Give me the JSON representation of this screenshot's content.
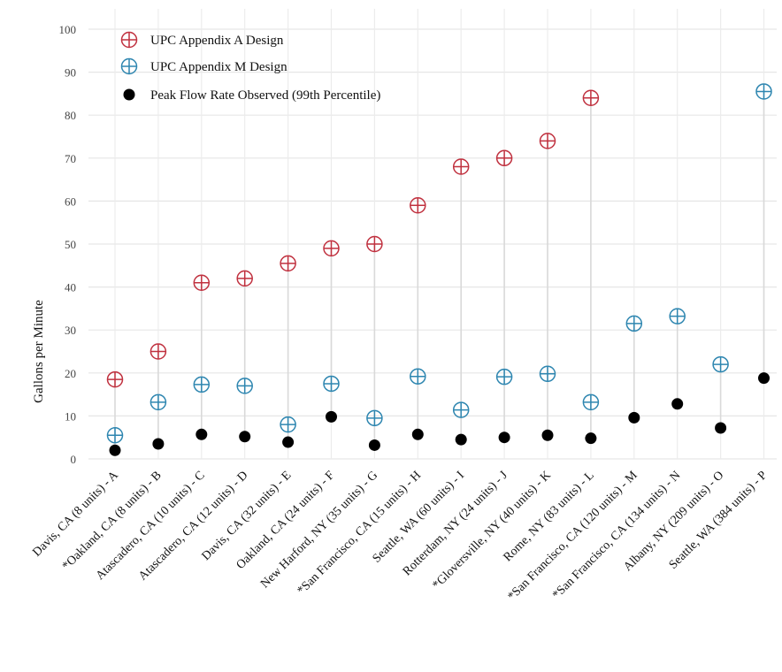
{
  "chart_data": {
    "type": "scatter",
    "title": "",
    "xlabel": "",
    "ylabel": "Gallons per Minute",
    "ylim": [
      0,
      100
    ],
    "yticks": [
      0,
      10,
      20,
      30,
      40,
      50,
      60,
      70,
      80,
      90,
      100
    ],
    "grid": true,
    "legend_position": "top-left",
    "categories": [
      "Davis, CA (8 units) - A",
      "*Oakland, CA (8 units) - B",
      "Atascadero, CA (10 units) - C",
      "Atascadero, CA (12 units) - D",
      "Davis, CA (32 units) - E",
      "Oakland, CA (24 units) - F",
      "New Harford, NY  (35 units) - G",
      "*San Francisco, CA (15 units) - H",
      "Seattle, WA (60 units) - I",
      "Rotterdam, NY (24 units) - J",
      "*Gloversville, NY (40 units) - K",
      "Rome, NY (83 units) - L",
      "*San Francisco, CA (120 units) - M",
      "*San Francisco, CA (134 units) - N",
      "Albany, NY (209 units) - O",
      "Seattle, WA (384 units) - P"
    ],
    "series": [
      {
        "name": "UPC Appendix A Design",
        "marker": "circle-plus",
        "color": "#c0313f",
        "values": [
          18.5,
          25,
          41,
          42,
          45.5,
          49,
          50,
          59,
          68,
          70,
          74,
          84,
          null,
          null,
          null,
          null
        ]
      },
      {
        "name": "UPC Appendix M Design",
        "marker": "circle-plus",
        "color": "#2e86b0",
        "values": [
          5.5,
          13.2,
          17.3,
          17,
          8,
          17.5,
          9.5,
          19.2,
          11.4,
          19.1,
          19.8,
          13.2,
          31.5,
          33.2,
          22,
          85.5
        ]
      },
      {
        "name": "Peak Flow Rate Observed (99th Percentile)",
        "marker": "filled-circle",
        "color": "#000000",
        "values": [
          2,
          3.5,
          5.7,
          5.2,
          3.9,
          9.8,
          3.2,
          5.7,
          4.5,
          5,
          5.5,
          4.8,
          9.6,
          12.8,
          7.2,
          18.8
        ]
      }
    ]
  }
}
